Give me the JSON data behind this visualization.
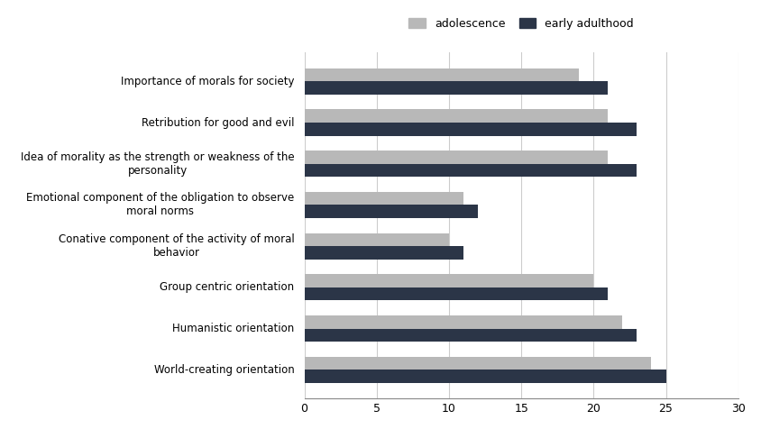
{
  "categories": [
    "World-creating orientation",
    "Humanistic orientation",
    "Group centric orientation",
    "Conative component of the activity of moral\nbehavior",
    "Emotional component of the obligation to observe\nmoral norms",
    "Idea of morality as the strength or weakness of the\npersonality",
    "Retribution for good and evil",
    "Importance of morals for society"
  ],
  "adolescence": [
    24,
    22,
    20,
    10,
    11,
    21,
    21,
    19
  ],
  "early_adulthood": [
    25,
    23,
    21,
    11,
    12,
    23,
    23,
    21
  ],
  "adolescence_color": "#b8b8b8",
  "early_adulthood_color": "#2b3547",
  "legend_adolescence": "adolescence",
  "legend_early_adulthood": "early adulthood",
  "xlim": [
    0,
    30
  ],
  "xticks": [
    0,
    5,
    10,
    15,
    20,
    25,
    30
  ],
  "background_color": "#ffffff",
  "bar_height": 0.32,
  "grid_color": "#cccccc",
  "fontsize_labels": 8.5,
  "fontsize_ticks": 9,
  "fontsize_legend": 9
}
